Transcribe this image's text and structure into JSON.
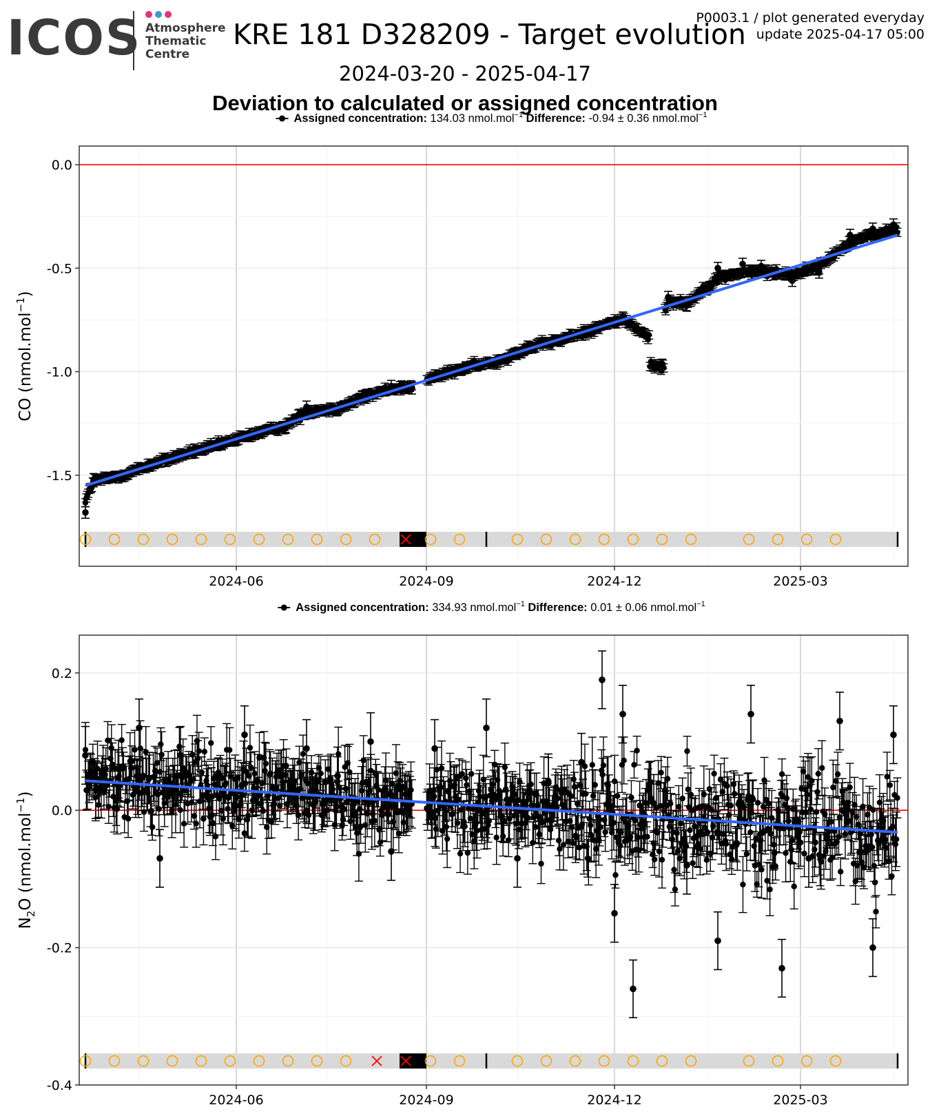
{
  "header": {
    "logo_wordmark": "ICOS",
    "logo_subtext": [
      "Atmosphere",
      "Thematic",
      "Centre"
    ],
    "logo_dot_colors": [
      "#e6307a",
      "#3a9ad9",
      "#e6307a"
    ],
    "title": "KRE 181 D328209 - Target evolution",
    "plot_id": "P0003.1 / plot generated everyday",
    "update": "update  2025-04-17 05:00",
    "date_range": "2024-03-20 - 2025-04-17",
    "subtitle": "Deviation to calculated or assigned concentration"
  },
  "colors": {
    "points": "#000000",
    "trend": "#3366ff",
    "zero_line": "#ff0000",
    "flag_circle": "#ffa500",
    "flag_cross": "#ff0000",
    "strip": "#d9d9d9"
  },
  "chart_data": [
    {
      "type": "scatter",
      "ylabel": "CO (nmol.mol",
      "ylabel_sup": "−1",
      "ylabel_end": ")",
      "legend_assigned_label": "Assigned concentration:",
      "legend_assigned_value": "134.03 nmol.mol",
      "legend_diff_label": "Difference:",
      "legend_diff_value": "-0.94 ± 0.36 nmol.mol",
      "legend_sup": "−1",
      "x_range": [
        "2024-03-17",
        "2025-04-22"
      ],
      "xticks": [
        "2024-06",
        "2024-09",
        "2024-12",
        "2025-03"
      ],
      "ylim": [
        -1.94,
        0.09
      ],
      "yticks": [
        "-1.5",
        "-1.0",
        "-0.5",
        "0.0"
      ],
      "zero_line": 0,
      "trend": {
        "x": [
          "2024-03-20",
          "2025-04-17"
        ],
        "y": [
          -1.55,
          -0.34
        ]
      },
      "series_x": [
        "2024-03-20",
        "2024-03-24",
        "2024-04-05",
        "2024-04-20",
        "2024-05-05",
        "2024-05-25",
        "2024-06-10",
        "2024-06-25",
        "2024-07-05",
        "2024-07-20",
        "2024-08-01",
        "2024-08-15",
        "2024-08-25",
        "2024-09-05",
        "2024-09-20",
        "2024-10-05",
        "2024-10-20",
        "2024-11-05",
        "2024-11-20",
        "2024-12-05",
        "2024-12-20",
        "2024-12-27",
        "2025-01-05",
        "2025-01-20",
        "2025-02-01",
        "2025-02-10",
        "2025-02-25",
        "2025-03-10",
        "2025-03-25",
        "2025-04-05",
        "2025-04-15"
      ],
      "series_y": [
        -1.68,
        -1.52,
        -1.51,
        -1.45,
        -1.4,
        -1.35,
        -1.3,
        -1.27,
        -1.17,
        -1.18,
        -1.12,
        -1.07,
        -1.08,
        -1.02,
        -0.98,
        -0.96,
        -0.88,
        -0.85,
        -0.8,
        -0.74,
        -0.97,
        -0.64,
        -0.68,
        -0.5,
        -0.48,
        -0.49,
        -0.56,
        -0.52,
        -0.34,
        -0.31,
        -0.29
      ],
      "error_halfwidth": 0.02,
      "flag_strip": {
        "y": -1.81,
        "start": "2024-03-20",
        "end": "2025-04-17"
      },
      "flag_circles": [
        "2024-03-20",
        "2024-04-03",
        "2024-04-17",
        "2024-05-01",
        "2024-05-15",
        "2024-05-29",
        "2024-06-12",
        "2024-06-26",
        "2024-07-10",
        "2024-07-24",
        "2024-08-07",
        "2024-09-03",
        "2024-09-17",
        "2024-10-15",
        "2024-10-29",
        "2024-11-12",
        "2024-11-26",
        "2024-12-10",
        "2024-12-24",
        "2025-01-07",
        "2025-02-04",
        "2025-02-18",
        "2025-03-04",
        "2025-03-18"
      ],
      "flag_crosses": [
        "2024-08-22"
      ],
      "flag_blocks": [
        {
          "start": "2024-08-19",
          "end": "2024-09-01"
        }
      ],
      "flag_ticks": [
        "2024-03-20",
        "2024-09-30",
        "2025-04-17"
      ]
    },
    {
      "type": "scatter",
      "ylabel": "N",
      "ylabel_sub": "2",
      "ylabel_end": "O (nmol.mol",
      "ylabel_sup": "−1",
      "ylabel_close": ")",
      "legend_assigned_label": "Assigned concentration:",
      "legend_assigned_value": "334.93 nmol.mol",
      "legend_diff_label": "Difference:",
      "legend_diff_value": "0.01 ± 0.06 nmol.mol",
      "legend_sup": "−1",
      "x_range": [
        "2024-03-17",
        "2025-04-22"
      ],
      "xticks": [
        "2024-06",
        "2024-09",
        "2024-12",
        "2025-03"
      ],
      "ylim": [
        -0.4,
        0.255
      ],
      "yticks": [
        "-0.4",
        "-0.2",
        "0.0",
        "0.2"
      ],
      "zero_line": 0,
      "trend": {
        "x": [
          "2024-03-20",
          "2025-04-17"
        ],
        "y": [
          0.043,
          -0.032
        ]
      },
      "series_x": [
        "2024-03-20",
        "2024-03-25",
        "2024-04-05",
        "2024-04-15",
        "2024-04-25",
        "2024-05-05",
        "2024-05-20",
        "2024-06-05",
        "2024-06-20",
        "2024-07-05",
        "2024-07-20",
        "2024-08-05",
        "2024-08-15",
        "2024-09-05",
        "2024-09-15",
        "2024-09-30",
        "2024-10-15",
        "2024-10-30",
        "2024-11-15",
        "2024-11-25",
        "2024-12-01",
        "2024-12-05",
        "2024-12-10",
        "2024-12-20",
        "2025-01-05",
        "2025-01-20",
        "2025-02-05",
        "2025-02-20",
        "2025-03-05",
        "2025-03-20",
        "2025-04-05",
        "2025-04-15"
      ],
      "series_y": [
        0.08,
        0.03,
        0.06,
        0.12,
        -0.07,
        0.08,
        0.02,
        0.11,
        0.03,
        0.09,
        0.05,
        0.1,
        -0.06,
        0.09,
        0.01,
        0.12,
        -0.07,
        0.04,
        0.07,
        0.19,
        -0.15,
        0.14,
        -0.26,
        0.01,
        -0.08,
        -0.19,
        0.14,
        -0.23,
        -0.07,
        0.13,
        -0.2,
        0.11
      ],
      "error_halfwidth": 0.03,
      "flag_strip": {
        "y": -0.365,
        "start": "2024-03-20",
        "end": "2025-04-17"
      },
      "flag_circles": [
        "2024-03-20",
        "2024-04-03",
        "2024-04-17",
        "2024-05-01",
        "2024-05-15",
        "2024-05-29",
        "2024-06-12",
        "2024-06-26",
        "2024-07-10",
        "2024-07-24",
        "2024-09-03",
        "2024-09-17",
        "2024-10-15",
        "2024-10-29",
        "2024-11-12",
        "2024-11-26",
        "2024-12-10",
        "2024-12-24",
        "2025-01-07",
        "2025-02-04",
        "2025-02-18",
        "2025-03-04",
        "2025-03-18"
      ],
      "flag_crosses": [
        "2024-08-08",
        "2024-08-22"
      ],
      "flag_blocks": [
        {
          "start": "2024-08-19",
          "end": "2024-09-01"
        }
      ],
      "flag_ticks": [
        "2024-03-20",
        "2024-09-30",
        "2025-04-17"
      ]
    }
  ]
}
